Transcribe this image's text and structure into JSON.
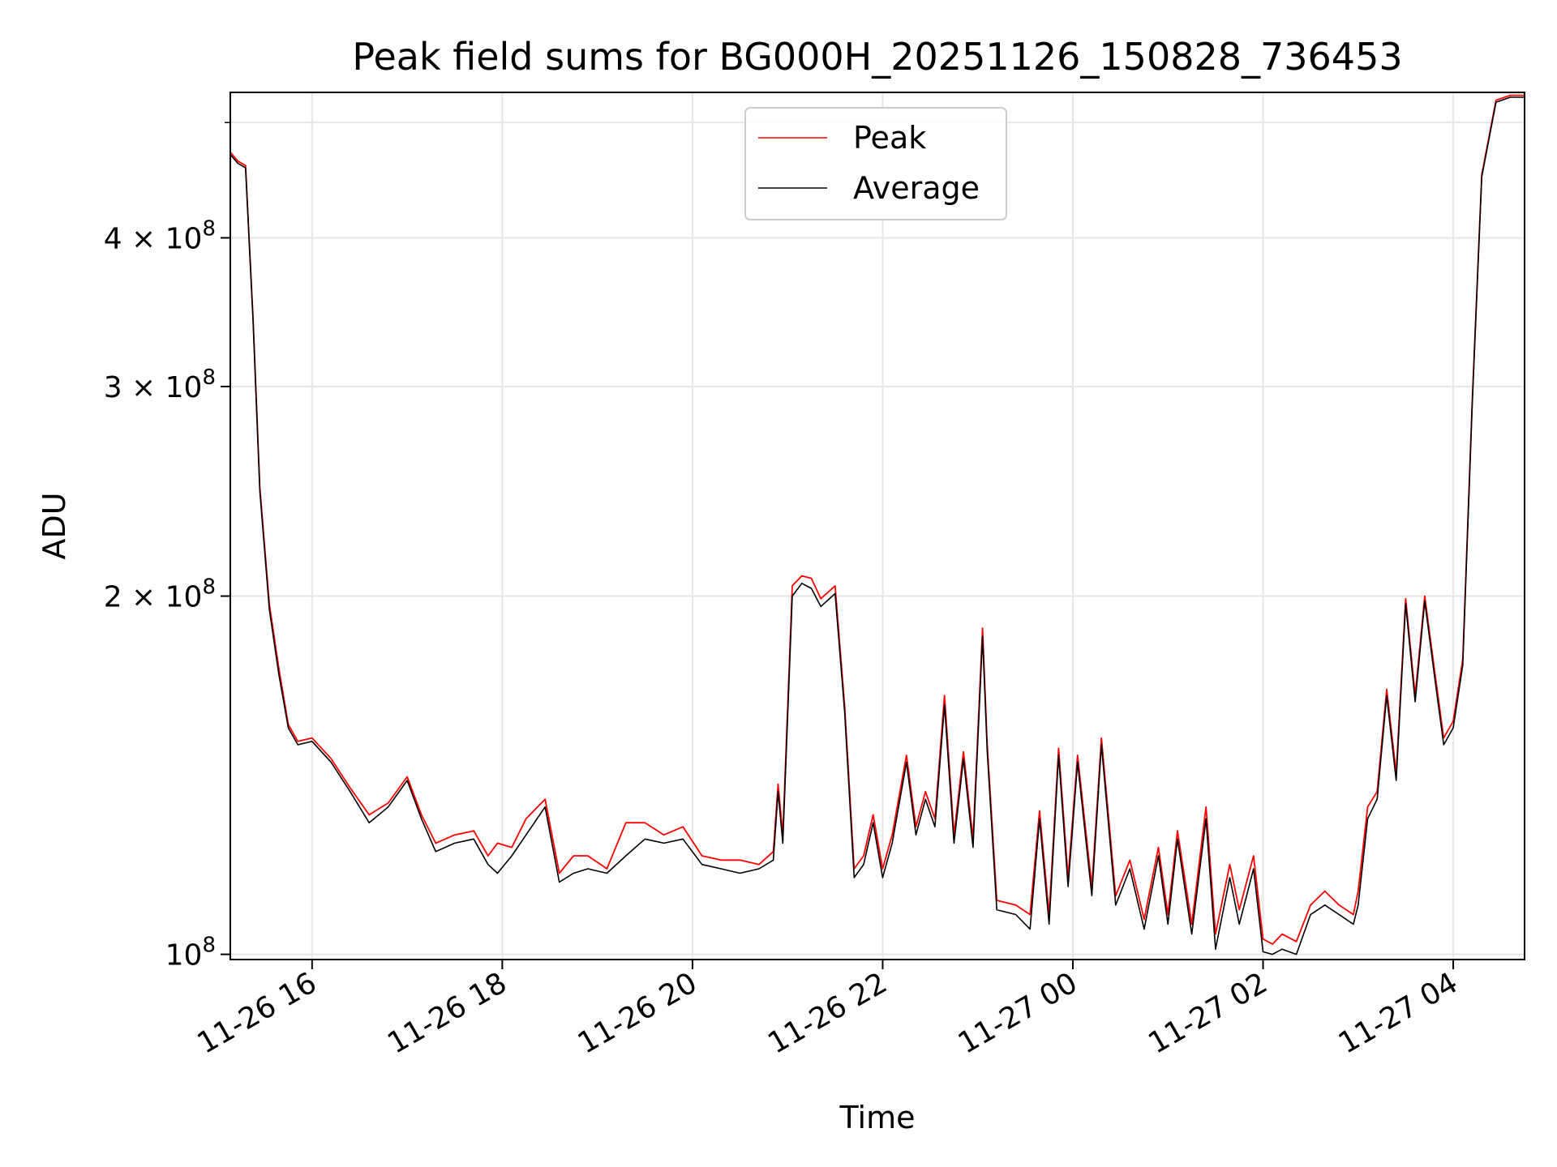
{
  "chart_data": {
    "type": "line",
    "title": "Peak field sums for BG000H_20251126_150828_736453",
    "xlabel": "Time",
    "ylabel": "ADU",
    "yscale": "log",
    "xlim_hours": [
      15.14,
      28.75
    ],
    "ylim": [
      99000000,
      530000000
    ],
    "grid": true,
    "legend_position": "top-center",
    "x_ticks": [
      {
        "hours": 16,
        "label": "11-26 16"
      },
      {
        "hours": 18,
        "label": "11-26 18"
      },
      {
        "hours": 20,
        "label": "11-26 20"
      },
      {
        "hours": 22,
        "label": "11-26 22"
      },
      {
        "hours": 24,
        "label": "11-27 00"
      },
      {
        "hours": 26,
        "label": "11-27 02"
      },
      {
        "hours": 28,
        "label": "11-27 04"
      }
    ],
    "y_ticks": [
      {
        "value": 100000000,
        "base": "10",
        "exp": "8",
        "coef": ""
      },
      {
        "value": 200000000,
        "base": "2 × 10",
        "exp": "8",
        "coef": ""
      },
      {
        "value": 300000000,
        "base": "3 × 10",
        "exp": "8",
        "coef": ""
      },
      {
        "value": 400000000,
        "base": "4 × 10",
        "exp": "8",
        "coef": ""
      }
    ],
    "y_minor_ticks": [
      500000000
    ],
    "series": [
      {
        "name": "Average",
        "color": "#000000",
        "time_hours": [
          15.14,
          15.22,
          15.3,
          15.38,
          15.45,
          15.55,
          15.65,
          15.75,
          15.85,
          16.0,
          16.2,
          16.4,
          16.6,
          16.8,
          17.0,
          17.15,
          17.3,
          17.5,
          17.7,
          17.85,
          17.95,
          18.1,
          18.25,
          18.45,
          18.6,
          18.75,
          18.9,
          19.1,
          19.3,
          19.5,
          19.7,
          19.9,
          20.1,
          20.3,
          20.5,
          20.7,
          20.85,
          20.9,
          20.95,
          21.05,
          21.15,
          21.25,
          21.35,
          21.5,
          21.6,
          21.7,
          21.8,
          21.9,
          22.0,
          22.1,
          22.25,
          22.35,
          22.45,
          22.55,
          22.65,
          22.75,
          22.85,
          22.95,
          23.05,
          23.1,
          23.2,
          23.4,
          23.55,
          23.65,
          23.75,
          23.85,
          23.95,
          24.05,
          24.2,
          24.3,
          24.45,
          24.6,
          24.75,
          24.9,
          25.0,
          25.1,
          25.25,
          25.4,
          25.5,
          25.65,
          25.75,
          25.9,
          26.0,
          26.1,
          26.2,
          26.35,
          26.5,
          26.65,
          26.8,
          26.95,
          27.0,
          27.1,
          27.2,
          27.3,
          27.4,
          27.5,
          27.6,
          27.7,
          27.8,
          27.9,
          28.0,
          28.1,
          28.2,
          28.3,
          28.45,
          28.6,
          28.75
        ],
        "values": [
          470000000,
          462000000,
          458000000,
          340000000,
          245000000,
          195000000,
          172000000,
          155000000,
          150000000,
          151000000,
          145000000,
          137000000,
          129000000,
          133000000,
          140000000,
          130000000,
          122000000,
          124000000,
          125000000,
          119000000,
          117000000,
          121000000,
          126000000,
          133000000,
          115000000,
          117000000,
          118000000,
          117000000,
          121000000,
          125000000,
          124000000,
          125000000,
          119000000,
          118000000,
          117000000,
          118000000,
          120000000,
          137000000,
          124000000,
          200000000,
          205000000,
          203000000,
          196000000,
          201000000,
          160000000,
          116000000,
          119000000,
          129000000,
          116000000,
          124000000,
          145000000,
          126000000,
          135000000,
          128000000,
          162000000,
          124000000,
          146000000,
          123000000,
          185000000,
          148000000,
          109000000,
          108000000,
          105000000,
          130000000,
          106000000,
          147000000,
          114000000,
          145000000,
          112000000,
          150000000,
          110000000,
          118000000,
          105000000,
          121000000,
          106000000,
          125000000,
          104000000,
          130000000,
          101000000,
          116000000,
          106000000,
          118000000,
          100500000,
          100000000,
          101000000,
          100000000,
          108000000,
          110000000,
          108000000,
          106000000,
          110000000,
          130000000,
          135000000,
          165000000,
          140000000,
          197000000,
          163000000,
          198000000,
          172000000,
          150000000,
          155000000,
          175000000,
          290000000,
          450000000,
          520000000,
          525000000,
          525000000
        ]
      },
      {
        "name": "Peak",
        "color": "#ff0000",
        "time_hours": [
          15.14,
          15.22,
          15.3,
          15.38,
          15.45,
          15.55,
          15.65,
          15.75,
          15.85,
          16.0,
          16.2,
          16.4,
          16.6,
          16.8,
          17.0,
          17.15,
          17.3,
          17.5,
          17.7,
          17.85,
          17.95,
          18.1,
          18.25,
          18.45,
          18.6,
          18.75,
          18.9,
          19.1,
          19.3,
          19.5,
          19.7,
          19.9,
          20.1,
          20.3,
          20.5,
          20.7,
          20.85,
          20.9,
          20.95,
          21.05,
          21.15,
          21.25,
          21.35,
          21.5,
          21.6,
          21.7,
          21.8,
          21.9,
          22.0,
          22.1,
          22.25,
          22.35,
          22.45,
          22.55,
          22.65,
          22.75,
          22.85,
          22.95,
          23.05,
          23.1,
          23.2,
          23.4,
          23.55,
          23.65,
          23.75,
          23.85,
          23.95,
          24.05,
          24.2,
          24.3,
          24.45,
          24.6,
          24.75,
          24.9,
          25.0,
          25.1,
          25.25,
          25.4,
          25.5,
          25.65,
          25.75,
          25.9,
          26.0,
          26.1,
          26.2,
          26.35,
          26.5,
          26.65,
          26.8,
          26.95,
          27.0,
          27.1,
          27.2,
          27.3,
          27.4,
          27.5,
          27.6,
          27.7,
          27.8,
          27.9,
          28.0,
          28.1,
          28.2,
          28.3,
          28.45,
          28.6,
          28.75
        ],
        "values": [
          472000000,
          464000000,
          460000000,
          342000000,
          247000000,
          197000000,
          174000000,
          156000000,
          151000000,
          152000000,
          146000000,
          138000000,
          131000000,
          134000000,
          141000000,
          131000000,
          124000000,
          126000000,
          127000000,
          121000000,
          124000000,
          123000000,
          130000000,
          135000000,
          117000000,
          121000000,
          121000000,
          118000000,
          129000000,
          129000000,
          126000000,
          128000000,
          121000000,
          120000000,
          120000000,
          119000000,
          122000000,
          139000000,
          126000000,
          204000000,
          208000000,
          207000000,
          199000000,
          204000000,
          162000000,
          118000000,
          121000000,
          131000000,
          118000000,
          126000000,
          147000000,
          128000000,
          137000000,
          130000000,
          165000000,
          126000000,
          148000000,
          125000000,
          188000000,
          150000000,
          111000000,
          110000000,
          108000000,
          132000000,
          108000000,
          149000000,
          116000000,
          147000000,
          114000000,
          152000000,
          112000000,
          120000000,
          107000000,
          123000000,
          108000000,
          127000000,
          106000000,
          133000000,
          104000000,
          119000000,
          109000000,
          121000000,
          103000000,
          102000000,
          104000000,
          102500000,
          110000000,
          113000000,
          110000000,
          108000000,
          113000000,
          133000000,
          137000000,
          167000000,
          142000000,
          199000000,
          165000000,
          200000000,
          174000000,
          152000000,
          157000000,
          177000000,
          292000000,
          452000000,
          522000000,
          527000000,
          527000000
        ]
      }
    ],
    "legend": [
      {
        "name": "Peak",
        "color": "#ff0000"
      },
      {
        "name": "Average",
        "color": "#000000"
      }
    ]
  }
}
